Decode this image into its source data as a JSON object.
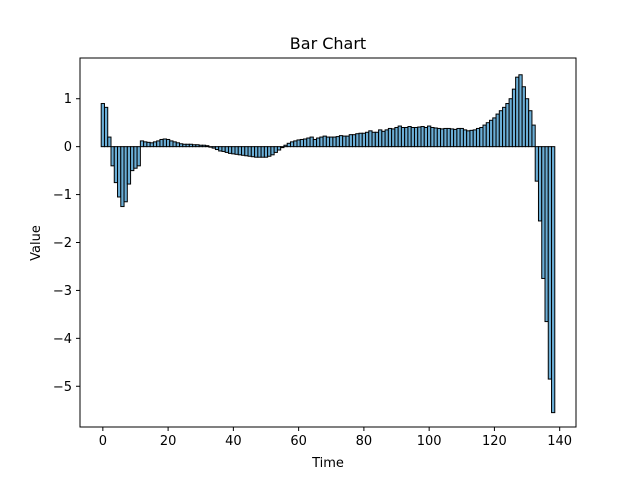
{
  "chart_data": {
    "type": "bar",
    "title": "Bar Chart",
    "xlabel": "Time",
    "ylabel": "Value",
    "xlim": [
      -7,
      145
    ],
    "ylim": [
      -5.85,
      1.85
    ],
    "x_ticks": [
      0,
      20,
      40,
      60,
      80,
      100,
      120,
      140
    ],
    "y_ticks": [
      -5,
      -4,
      -3,
      -2,
      -1,
      0,
      1
    ],
    "x_tick_labels": [
      "0",
      "20",
      "40",
      "60",
      "80",
      "100",
      "120",
      "140"
    ],
    "y_tick_labels": [
      "−5",
      "−4",
      "−3",
      "−2",
      "−1",
      "0",
      "1"
    ],
    "bar_color": "#6baed6",
    "edge_color": "#000000",
    "grid": false,
    "x": [
      0,
      1,
      2,
      3,
      4,
      5,
      6,
      7,
      8,
      9,
      10,
      11,
      12,
      13,
      14,
      15,
      16,
      17,
      18,
      19,
      20,
      21,
      22,
      23,
      24,
      25,
      26,
      27,
      28,
      29,
      30,
      31,
      32,
      33,
      34,
      35,
      36,
      37,
      38,
      39,
      40,
      41,
      42,
      43,
      44,
      45,
      46,
      47,
      48,
      49,
      50,
      51,
      52,
      53,
      54,
      55,
      56,
      57,
      58,
      59,
      60,
      61,
      62,
      63,
      64,
      65,
      66,
      67,
      68,
      69,
      70,
      71,
      72,
      73,
      74,
      75,
      76,
      77,
      78,
      79,
      80,
      81,
      82,
      83,
      84,
      85,
      86,
      87,
      88,
      89,
      90,
      91,
      92,
      93,
      94,
      95,
      96,
      97,
      98,
      99,
      100,
      101,
      102,
      103,
      104,
      105,
      106,
      107,
      108,
      109,
      110,
      111,
      112,
      113,
      114,
      115,
      116,
      117,
      118,
      119,
      120,
      121,
      122,
      123,
      124,
      125,
      126,
      127,
      128,
      129,
      130,
      131,
      132,
      133,
      134,
      135,
      136,
      137,
      138
    ],
    "values": [
      0.9,
      0.82,
      0.2,
      -0.4,
      -0.75,
      -1.05,
      -1.25,
      -1.15,
      -0.78,
      -0.5,
      -0.45,
      -0.4,
      0.12,
      0.1,
      0.09,
      0.08,
      0.1,
      0.12,
      0.15,
      0.16,
      0.15,
      0.12,
      0.1,
      0.08,
      0.06,
      0.05,
      0.05,
      0.05,
      0.04,
      0.04,
      0.03,
      0.03,
      0.02,
      0.0,
      -0.03,
      -0.06,
      -0.09,
      -0.1,
      -0.12,
      -0.14,
      -0.15,
      -0.16,
      -0.17,
      -0.18,
      -0.19,
      -0.2,
      -0.21,
      -0.22,
      -0.22,
      -0.22,
      -0.22,
      -0.2,
      -0.17,
      -0.12,
      -0.07,
      -0.02,
      0.03,
      0.07,
      0.1,
      0.12,
      0.14,
      0.15,
      0.16,
      0.18,
      0.2,
      0.15,
      0.18,
      0.2,
      0.22,
      0.2,
      0.2,
      0.2,
      0.21,
      0.23,
      0.22,
      0.22,
      0.25,
      0.25,
      0.27,
      0.28,
      0.28,
      0.3,
      0.33,
      0.3,
      0.3,
      0.35,
      0.32,
      0.35,
      0.38,
      0.37,
      0.4,
      0.43,
      0.4,
      0.4,
      0.42,
      0.4,
      0.4,
      0.41,
      0.42,
      0.4,
      0.43,
      0.4,
      0.39,
      0.38,
      0.37,
      0.38,
      0.38,
      0.37,
      0.36,
      0.38,
      0.38,
      0.35,
      0.33,
      0.34,
      0.35,
      0.38,
      0.4,
      0.45,
      0.5,
      0.55,
      0.6,
      0.68,
      0.75,
      0.82,
      0.9,
      1.0,
      1.2,
      1.45,
      1.5,
      1.25,
      1.0,
      0.75,
      0.45,
      -0.72,
      -1.55,
      -2.75,
      -3.65,
      -4.85,
      -5.55
    ]
  }
}
